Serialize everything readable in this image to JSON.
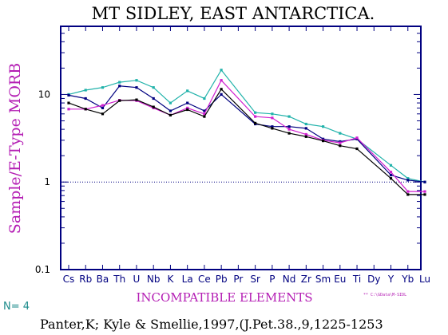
{
  "chart_data": {
    "type": "line",
    "title": "MT SIDLEY, EAST ANTARCTICA.",
    "ylabel": "Sample/E-Type MORB",
    "xlabel": "INCOMPATIBLE ELEMENTS",
    "yscale": "log",
    "ylim": [
      0.1,
      60
    ],
    "yticks": [
      {
        "value": 0.1,
        "label": "0.1"
      },
      {
        "value": 1,
        "label": "1"
      },
      {
        "value": 10,
        "label": "10"
      }
    ],
    "reference_line": 1,
    "categories": [
      "Cs",
      "Rb",
      "Ba",
      "Th",
      "U",
      "Nb",
      "K",
      "La",
      "Ce",
      "Pb",
      "Pr",
      "Sr",
      "P",
      "Nd",
      "Zr",
      "Sm",
      "Eu",
      "Ti",
      "Dy",
      "Y",
      "Yb",
      "Lu"
    ],
    "series": [
      {
        "color": "#20b2aa",
        "values": [
          10.0,
          11.2,
          12.0,
          13.8,
          14.5,
          12.0,
          8.0,
          11.0,
          9.0,
          19.0,
          null,
          6.2,
          6.0,
          5.6,
          4.6,
          4.3,
          3.6,
          3.1,
          null,
          1.55,
          1.1,
          1.0
        ]
      },
      {
        "color": "#000080",
        "values": [
          9.8,
          9.0,
          7.0,
          12.5,
          12.0,
          9.0,
          6.5,
          8.0,
          6.5,
          10.0,
          null,
          4.6,
          4.3,
          4.3,
          4.1,
          3.1,
          2.9,
          3.1,
          null,
          1.2,
          1.05,
          1.0
        ]
      },
      {
        "color": "#d020d0",
        "values": [
          6.8,
          6.8,
          7.5,
          8.6,
          8.5,
          7.0,
          5.8,
          7.0,
          6.0,
          14.5,
          null,
          5.6,
          5.4,
          4.0,
          3.5,
          3.0,
          2.8,
          3.2,
          null,
          1.3,
          0.78,
          0.78
        ]
      },
      {
        "color": "#000000",
        "values": [
          8.0,
          6.8,
          6.0,
          8.5,
          8.7,
          7.2,
          5.8,
          6.7,
          5.6,
          11.5,
          null,
          4.7,
          4.1,
          3.6,
          3.3,
          2.95,
          2.6,
          2.4,
          null,
          1.1,
          0.72,
          0.72
        ]
      }
    ]
  },
  "footer": {
    "n_label": "N= 4",
    "file_path": "** C:\\GData\\M-SIDL",
    "citation": "Panter,K; Kyle & Smellie,1997,(J.Pet.38.,9,1225-1253"
  }
}
